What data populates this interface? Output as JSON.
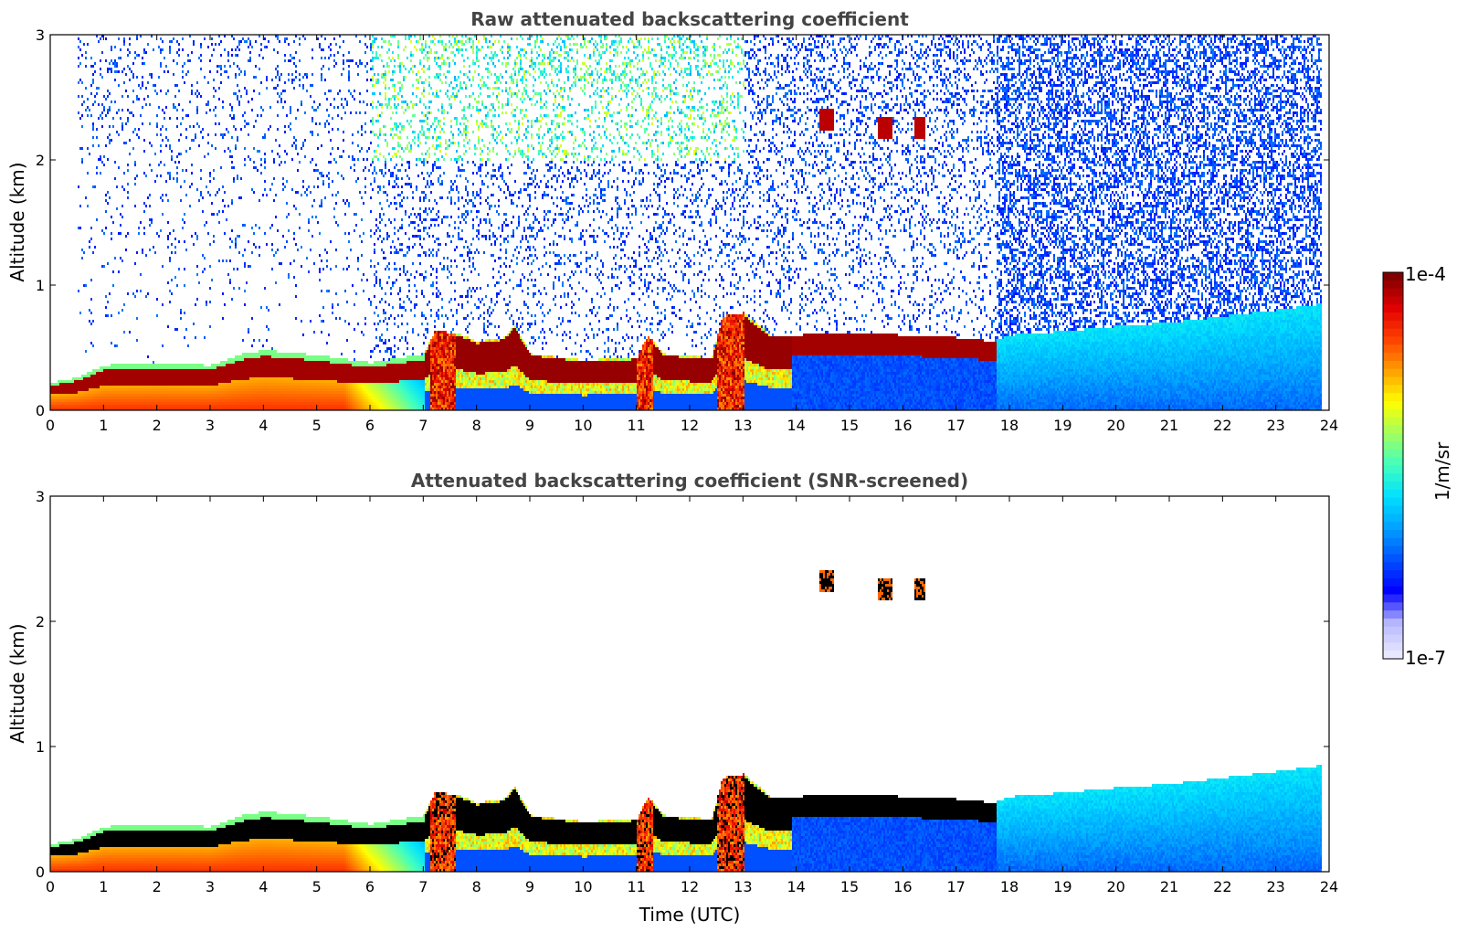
{
  "chart_data": [
    {
      "type": "heatmap",
      "title": "Raw attenuated backscattering coefficient",
      "xlabel": "",
      "ylabel": "Altitude (km)",
      "xlim": [
        0,
        24
      ],
      "ylim": [
        0,
        3
      ],
      "xticks": [
        "0",
        "1",
        "2",
        "3",
        "4",
        "5",
        "6",
        "7",
        "8",
        "9",
        "10",
        "11",
        "12",
        "13",
        "14",
        "15",
        "16",
        "17",
        "18",
        "19",
        "20",
        "21",
        "22",
        "23",
        "24"
      ],
      "yticks": [
        "0",
        "1",
        "2",
        "3"
      ],
      "grid": false,
      "data_end_time": 23.85,
      "boundary_layer_top_km": [
        [
          0,
          0.22
        ],
        [
          0.5,
          0.26
        ],
        [
          1,
          0.36
        ],
        [
          2,
          0.37
        ],
        [
          3,
          0.36
        ],
        [
          3.6,
          0.45
        ],
        [
          4,
          0.48
        ],
        [
          5,
          0.44
        ],
        [
          6,
          0.38
        ],
        [
          7,
          0.45
        ],
        [
          7.2,
          0.63
        ],
        [
          7.6,
          0.62
        ],
        [
          8,
          0.55
        ],
        [
          8.5,
          0.58
        ],
        [
          8.7,
          0.68
        ],
        [
          9,
          0.45
        ],
        [
          10,
          0.4
        ],
        [
          11,
          0.42
        ],
        [
          11.2,
          0.6
        ],
        [
          11.5,
          0.45
        ],
        [
          12.4,
          0.42
        ],
        [
          12.6,
          0.75
        ],
        [
          13,
          0.78
        ],
        [
          13.5,
          0.6
        ],
        [
          14,
          0.6
        ],
        [
          15,
          0.62
        ],
        [
          16,
          0.6
        ],
        [
          17,
          0.58
        ],
        [
          17.7,
          0.55
        ],
        [
          18,
          0.6
        ],
        [
          19,
          0.63
        ],
        [
          20,
          0.67
        ],
        [
          21,
          0.7
        ],
        [
          22,
          0.75
        ],
        [
          23,
          0.8
        ],
        [
          23.85,
          0.85
        ]
      ],
      "elevated_layers": [
        {
          "t_start": 14.4,
          "t_end": 14.7,
          "alt_km": 2.32
        },
        {
          "t_start": 15.5,
          "t_end": 15.8,
          "alt_km": 2.26
        },
        {
          "t_start": 16.2,
          "t_end": 16.4,
          "alt_km": 2.25
        }
      ]
    },
    {
      "type": "heatmap",
      "title": "Attenuated backscattering coefficient (SNR-screened)",
      "xlabel": "Time (UTC)",
      "ylabel": "Altitude (km)",
      "xlim": [
        0,
        24
      ],
      "ylim": [
        0,
        3
      ],
      "xticks": [
        "0",
        "1",
        "2",
        "3",
        "4",
        "5",
        "6",
        "7",
        "8",
        "9",
        "10",
        "11",
        "12",
        "13",
        "14",
        "15",
        "16",
        "17",
        "18",
        "19",
        "20",
        "21",
        "22",
        "23",
        "24"
      ],
      "yticks": [
        "0",
        "1",
        "2",
        "3"
      ],
      "grid": false,
      "saturated_color": "#000000"
    }
  ],
  "colorbar": {
    "label": "1/m/sr",
    "max_label": "1e-4",
    "min_label": "1e-7",
    "scale": "log",
    "range": [
      1e-07,
      0.0001
    ],
    "colormap": [
      "#e8e8ff",
      "#b8b8ff",
      "#0000ff",
      "#0050ff",
      "#00a0ff",
      "#00e0ff",
      "#40ffc0",
      "#a0ff60",
      "#ffff00",
      "#ffa000",
      "#ff4000",
      "#e00000",
      "#800000"
    ]
  }
}
